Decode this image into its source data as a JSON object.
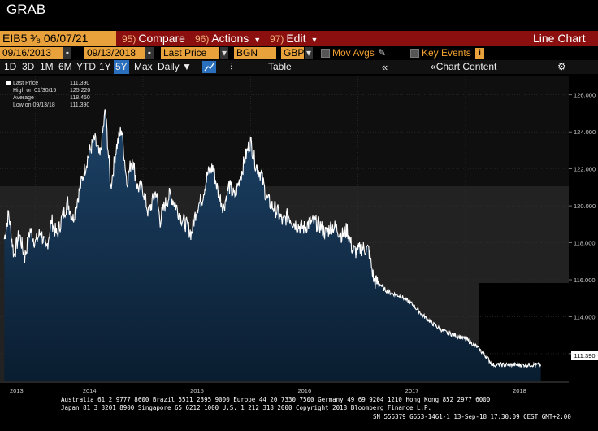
{
  "title": "GRAB",
  "toolbar": {
    "security": "EIB5 ³⁄₈ 06/07/21 ",
    "compare_num": "95)",
    "compare_label": "Compare",
    "actions_num": "96)",
    "actions_label": "Actions",
    "edit_num": "97)",
    "edit_label": "Edit",
    "chart_type": "Line Chart"
  },
  "row2": {
    "start_date": "09/16/2013",
    "end_date": "09/13/2018",
    "field": "Last Price",
    "source": "BGN",
    "currency": "GBP",
    "mov_avgs": "Mov Avgs",
    "key_events": "Key Events"
  },
  "row3": {
    "ranges": [
      "1D",
      "3D",
      "1M",
      "6M",
      "YTD",
      "1Y",
      "5Y",
      "Max"
    ],
    "selected_range": "5Y",
    "frequency": "Daily ▼",
    "table_label": "Table",
    "chart_content_label": "Chart Content"
  },
  "legend": {
    "rows": [
      {
        "label": "Last Price",
        "value": "111.390"
      },
      {
        "label": "High on 01/30/15",
        "value": "125.220"
      },
      {
        "label": "Average",
        "value": "118.450"
      },
      {
        "label": "Low on 09/13/18",
        "value": "111.390"
      }
    ]
  },
  "chart_data": {
    "type": "area",
    "ylim": [
      110.5,
      127
    ],
    "yticks": [
      "112.000",
      "114.000",
      "116.000",
      "118.000",
      "120.000",
      "122.000",
      "124.000",
      "126.000"
    ],
    "yticks_values": [
      112,
      114,
      116,
      118,
      120,
      122,
      124,
      126
    ],
    "xticks": [
      "2013",
      "2014",
      "2015",
      "2016",
      "2017",
      "2018"
    ],
    "xticks_years": [
      2013.75,
      2014,
      2015,
      2016,
      2017,
      2018
    ],
    "last_value_label": "111.390",
    "series": [
      {
        "x": [
          2013.71,
          2013.75,
          2013.8,
          2013.85,
          2013.9,
          2013.95,
          2014.0,
          2014.05,
          2014.1,
          2014.15,
          2014.2,
          2014.25,
          2014.3,
          2014.35,
          2014.4,
          2014.45,
          2014.5,
          2014.55,
          2014.6,
          2014.65,
          2014.7,
          2014.75,
          2014.8,
          2014.85,
          2014.9,
          2014.95,
          2015.0,
          2015.05,
          2015.08,
          2015.12,
          2015.16,
          2015.2,
          2015.25,
          2015.3,
          2015.35,
          2015.4,
          2015.45,
          2015.5,
          2015.55,
          2015.6,
          2015.65,
          2015.7,
          2015.75,
          2015.8,
          2015.85,
          2015.9,
          2015.95,
          2016.0,
          2016.05,
          2016.1,
          2016.15,
          2016.2,
          2016.25,
          2016.3,
          2016.35,
          2016.4,
          2016.45,
          2016.5,
          2016.55,
          2016.6,
          2016.65,
          2016.7,
          2016.75,
          2016.8,
          2016.85,
          2016.9,
          2016.95,
          2017.0,
          2017.02,
          2017.06,
          2017.1,
          2017.15,
          2017.2,
          2017.24,
          2017.3,
          2017.4,
          2017.5,
          2017.6,
          2017.7,
          2017.75,
          2017.8,
          2017.9,
          2018.0,
          2018.05,
          2018.1,
          2018.15,
          2018.2,
          2018.25,
          2018.3,
          2018.35,
          2018.4,
          2018.45,
          2018.5,
          2018.55,
          2018.6,
          2018.65,
          2018.7
        ],
        "values": [
          118.2,
          119.6,
          117.3,
          118.5,
          117.2,
          118.7,
          118.0,
          118.6,
          117.6,
          119.2,
          118.4,
          119.4,
          120.2,
          119.3,
          120.6,
          121.8,
          122.9,
          123.6,
          122.6,
          125.2,
          121.0,
          123.1,
          124.2,
          121.3,
          122.6,
          121.0,
          120.9,
          119.6,
          120.1,
          120.8,
          119.2,
          120.0,
          120.6,
          120.1,
          119.4,
          119.0,
          118.5,
          119.9,
          120.4,
          121.7,
          122.1,
          120.7,
          119.9,
          121.1,
          120.5,
          121.4,
          122.6,
          123.5,
          122.2,
          121.7,
          120.4,
          120.0,
          119.7,
          119.1,
          119.5,
          119.1,
          118.9,
          118.8,
          119.1,
          119.1,
          118.9,
          118.5,
          118.9,
          118.8,
          118.4,
          118.7,
          117.6,
          117.5,
          117.7,
          117.7,
          117.6,
          115.9,
          115.8,
          115.5,
          115.3,
          115.1,
          114.7,
          114.1,
          113.6,
          113.4,
          113.2,
          113.0,
          112.8,
          112.6,
          112.4,
          112.1,
          111.8,
          111.4,
          111.4,
          111.4,
          111.4,
          111.4,
          111.4,
          111.4,
          111.4,
          111.4,
          111.4
        ]
      }
    ]
  },
  "footer": {
    "line1": "Australia 61 2 9777 8600 Brazil 5511 2395 9000 Europe 44 20 7330 7500 Germany 49 69 9204 1210 Hong Kong 852 2977 6000",
    "line2": "Japan 81 3 3201 8900        Singapore 65 6212 1000        U.S. 1 212 318 2000               Copyright 2018 Bloomberg Finance L.P.",
    "line3": "SN 555379 G653-1461-1 13-Sep-18 17:30:09 CEST GMT+2:00"
  },
  "colors": {
    "area_top": "#1d4368",
    "area_bottom": "#0a1d30",
    "line": "#ffffff",
    "brand_red": "#8c0f0f",
    "field_orange": "#e9a23b"
  }
}
